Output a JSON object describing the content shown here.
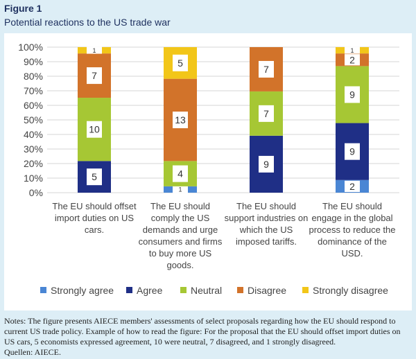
{
  "figure_label": "Figure 1",
  "figure_title": "Potential reactions to the US trade war",
  "notes": "Notes: The figure presents AIECE members' assessments of select proposals regarding how the EU should respond to current US trade policy. Example of how to read the figure: For the proposal that the EU should offset import duties on US cars, 5 economists expressed agreement, 10 were neutral, 7 disagreed, and 1 strongly disagreed.",
  "source": "Quellen: AIECE.",
  "colors": {
    "background": "#ddeef6",
    "title": "#1d2f5e",
    "strongly_agree": "#4a86d4",
    "agree": "#1f2f86",
    "neutral": "#a6c734",
    "disagree": "#d2732a",
    "strongly_disagree": "#f2c619"
  },
  "chart_data": {
    "type": "bar",
    "stacked": true,
    "normalized": true,
    "ylim": [
      0,
      100
    ],
    "yticks": [
      "0%",
      "10%",
      "20%",
      "30%",
      "40%",
      "50%",
      "60%",
      "70%",
      "80%",
      "90%",
      "100%"
    ],
    "categories": [
      "The EU should offset import duties on US cars.",
      "The EU should comply the US demands and urge consumers and firms to buy more US goods.",
      "The EU should support industries on which the US imposed tariffs.",
      "The EU should engage in the global process to reduce the dominance of the USD."
    ],
    "series": [
      {
        "name": "Strongly agree",
        "color": "#4a86d4",
        "values": [
          0,
          1,
          0,
          2
        ]
      },
      {
        "name": "Agree",
        "color": "#1f2f86",
        "values": [
          5,
          0,
          9,
          9
        ]
      },
      {
        "name": "Neutral",
        "color": "#a6c734",
        "values": [
          10,
          4,
          7,
          9
        ]
      },
      {
        "name": "Disagree",
        "color": "#d2732a",
        "values": [
          7,
          13,
          7,
          2
        ]
      },
      {
        "name": "Strongly disagree",
        "color": "#f2c619",
        "values": [
          1,
          5,
          0,
          1
        ]
      }
    ],
    "legend_position": "bottom"
  }
}
